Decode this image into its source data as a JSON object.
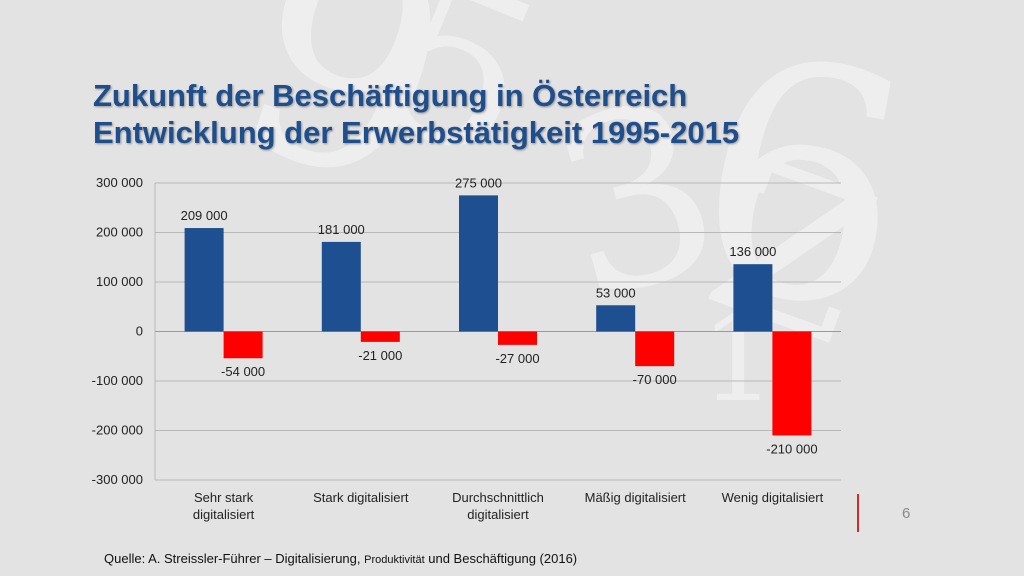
{
  "slide": {
    "title_line1": "Zukunft der Beschäftigung in Österreich",
    "title_line2": "Entwicklung der Erwerbstätigkeit 1995-2015",
    "slide_number": "6",
    "source_part1": "Quelle: A. Streissler-Führer – Digitalisierung, ",
    "source_part2": "Produktivität",
    "source_part3": " und Beschäftigung (2016)",
    "accent_color": "#d32b2b",
    "title_color": "#1f4e8c"
  },
  "chart_data": {
    "type": "bar",
    "categories": [
      [
        "Sehr stark",
        "digitalisiert"
      ],
      [
        "Stark digitalisiert"
      ],
      [
        "Durchschnittlich",
        "digitalisiert"
      ],
      [
        "Mäßig digitalisiert"
      ],
      [
        "Wenig digitalisiert"
      ]
    ],
    "series": [
      {
        "values": [
          209000,
          181000,
          275000,
          53000,
          136000
        ],
        "labels": [
          "209 000",
          "181 000",
          "275 000",
          "53 000",
          "136 000"
        ],
        "color": "#1d4f91"
      },
      {
        "values": [
          -54000,
          -21000,
          -27000,
          -70000,
          -210000
        ],
        "labels": [
          "-54 000",
          "-21 000",
          "-27 000",
          "-70 000",
          "-210 000"
        ],
        "color": "#ff0000"
      }
    ],
    "ylim": [
      -300000,
      300000
    ],
    "yticks": [
      300000,
      200000,
      100000,
      0,
      -100000,
      -200000,
      -300000
    ],
    "ytick_labels": [
      "300 000",
      "200 000",
      "100 000",
      "0",
      "-100 000",
      "-200 000",
      "-300 000"
    ],
    "grid": true
  }
}
